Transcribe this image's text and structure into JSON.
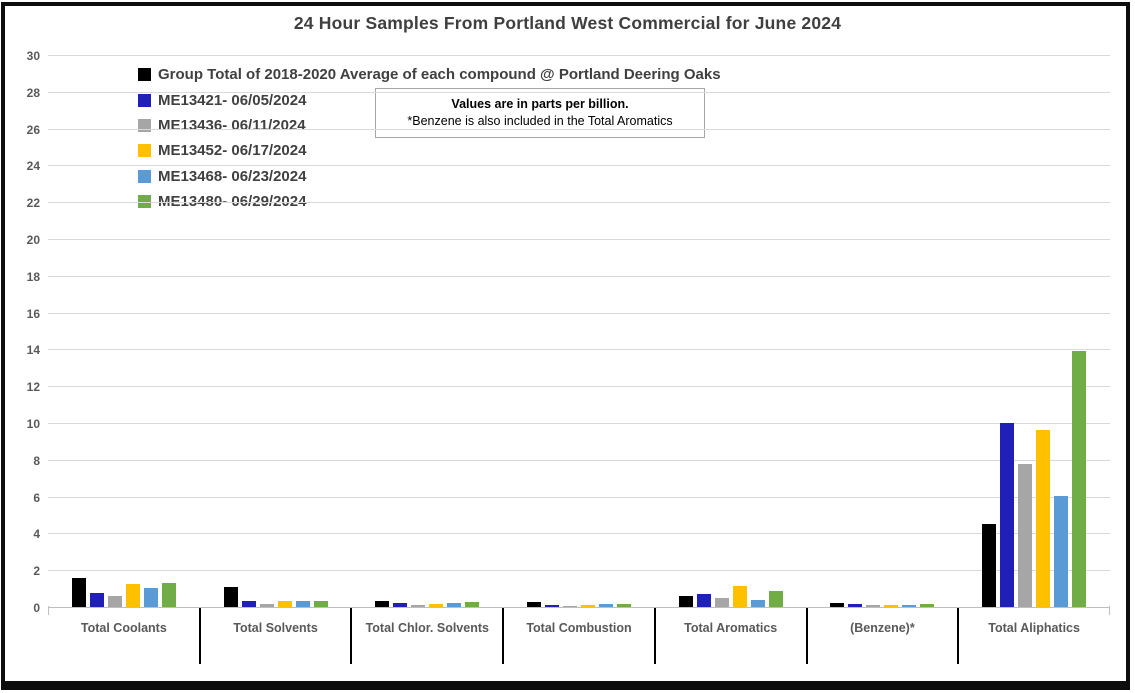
{
  "window": {
    "background": "#FFFFFF",
    "border_color": "#0D0D0D"
  },
  "colors": {
    "gridline": "#D9D9D9",
    "axis_line": "#BFBFBF",
    "tick_label": "#595959",
    "category_label": "#595959",
    "title_text": "#3F3F3F",
    "legend_text": "#404040",
    "category_divider": "#000000",
    "note_border": "#A6A6A6"
  },
  "note": {
    "line1": "Values are in parts per billion.",
    "line2": "*Benzene is also included in the Total Aromatics"
  },
  "chart_data": {
    "type": "bar",
    "title": "24 Hour Samples From Portland West Commercial for June 2024",
    "xlabel": "",
    "ylabel": "",
    "unit": "parts per billion",
    "ylim": [
      0,
      30
    ],
    "ytick_step": 2,
    "grid": true,
    "legend_position": "top-left",
    "categories": [
      "Total Coolants",
      "Total Solvents",
      "Total Chlor. Solvents",
      "Total Combustion",
      "Total Aromatics",
      "(Benzene)*",
      "Total Aliphatics"
    ],
    "series": [
      {
        "name": "Group Total of 2018-2020 Average of each compound @ Portland Deering Oaks",
        "color": "#000000",
        "values": [
          1.55,
          1.1,
          0.35,
          0.28,
          0.6,
          0.2,
          4.5
        ]
      },
      {
        "name": "ME13421- 06/05/2024",
        "color": "#2020B8",
        "values": [
          0.75,
          0.35,
          0.2,
          0.1,
          0.7,
          0.16,
          10.0
        ]
      },
      {
        "name": "ME13436- 06/11/2024",
        "color": "#A6A6A6",
        "values": [
          0.62,
          0.15,
          0.12,
          0.04,
          0.5,
          0.1,
          7.75
        ]
      },
      {
        "name": "ME13452- 06/17/2024",
        "color": "#FFC000",
        "values": [
          1.25,
          0.35,
          0.18,
          0.1,
          1.15,
          0.1,
          9.6
        ]
      },
      {
        "name": "ME13468- 06/23/2024",
        "color": "#5B9BD5",
        "values": [
          1.03,
          0.3,
          0.2,
          0.16,
          0.4,
          0.1,
          6.05
        ]
      },
      {
        "name": "ME13480- 06/29/2024",
        "color": "#70AD47",
        "values": [
          1.32,
          0.3,
          0.25,
          0.14,
          0.85,
          0.16,
          13.9
        ]
      }
    ]
  }
}
